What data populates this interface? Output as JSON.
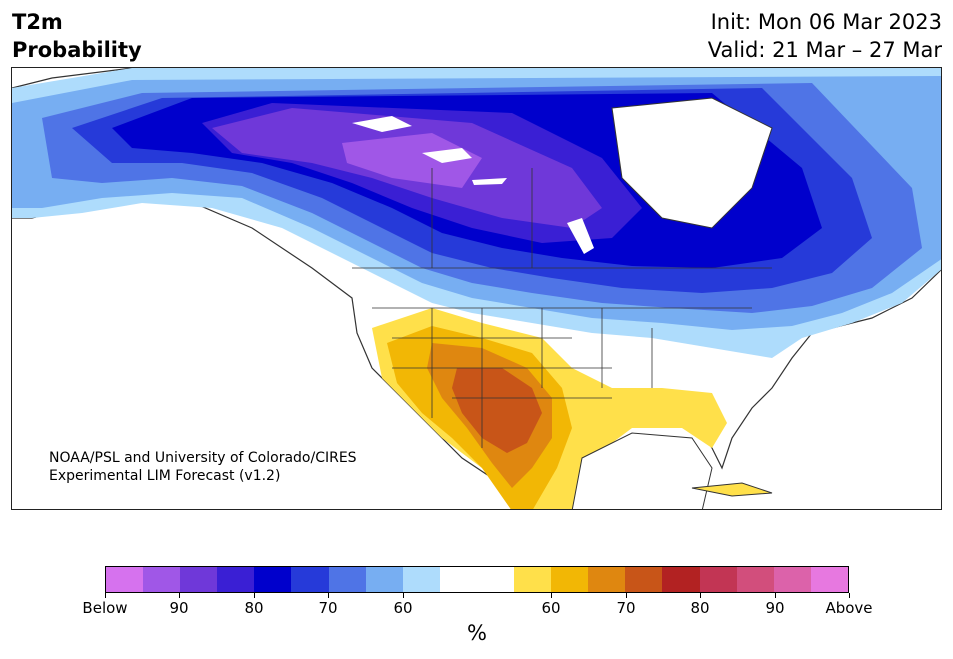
{
  "header": {
    "title_line1": "T2m",
    "title_line2": "Probability",
    "init": "Init: Mon 06 Mar 2023",
    "valid": "Valid: 21 Mar – 27 Mar"
  },
  "credit": {
    "line1": "NOAA/PSL and University of Colorado/CIRES",
    "line2": "Experimental LIM Forecast (v1.2)"
  },
  "colorbar": {
    "colors": [
      "#d672ee",
      "#a057e7",
      "#6f38d9",
      "#3a1fd4",
      "#0000cc",
      "#263ad9",
      "#4f74e6",
      "#77aef2",
      "#aedcfc",
      "#ffffff",
      "#ffffff",
      "#ffe04a",
      "#f2b705",
      "#df8710",
      "#c85518",
      "#b22222",
      "#c23554",
      "#d24e7c",
      "#dc62aa",
      "#e778e0"
    ],
    "tick_labels": [
      "Below",
      "90",
      "80",
      "70",
      "60",
      "60",
      "70",
      "80",
      "90",
      "Above"
    ],
    "unit": "%"
  },
  "map": {
    "ocean_color": "#ffffff",
    "land_neutral_color": "#ffffff",
    "cold_anomaly_region": "Canada / Alaska / northern US",
    "warm_anomaly_region": "Southwest US / Mexico / Gulf coast"
  }
}
